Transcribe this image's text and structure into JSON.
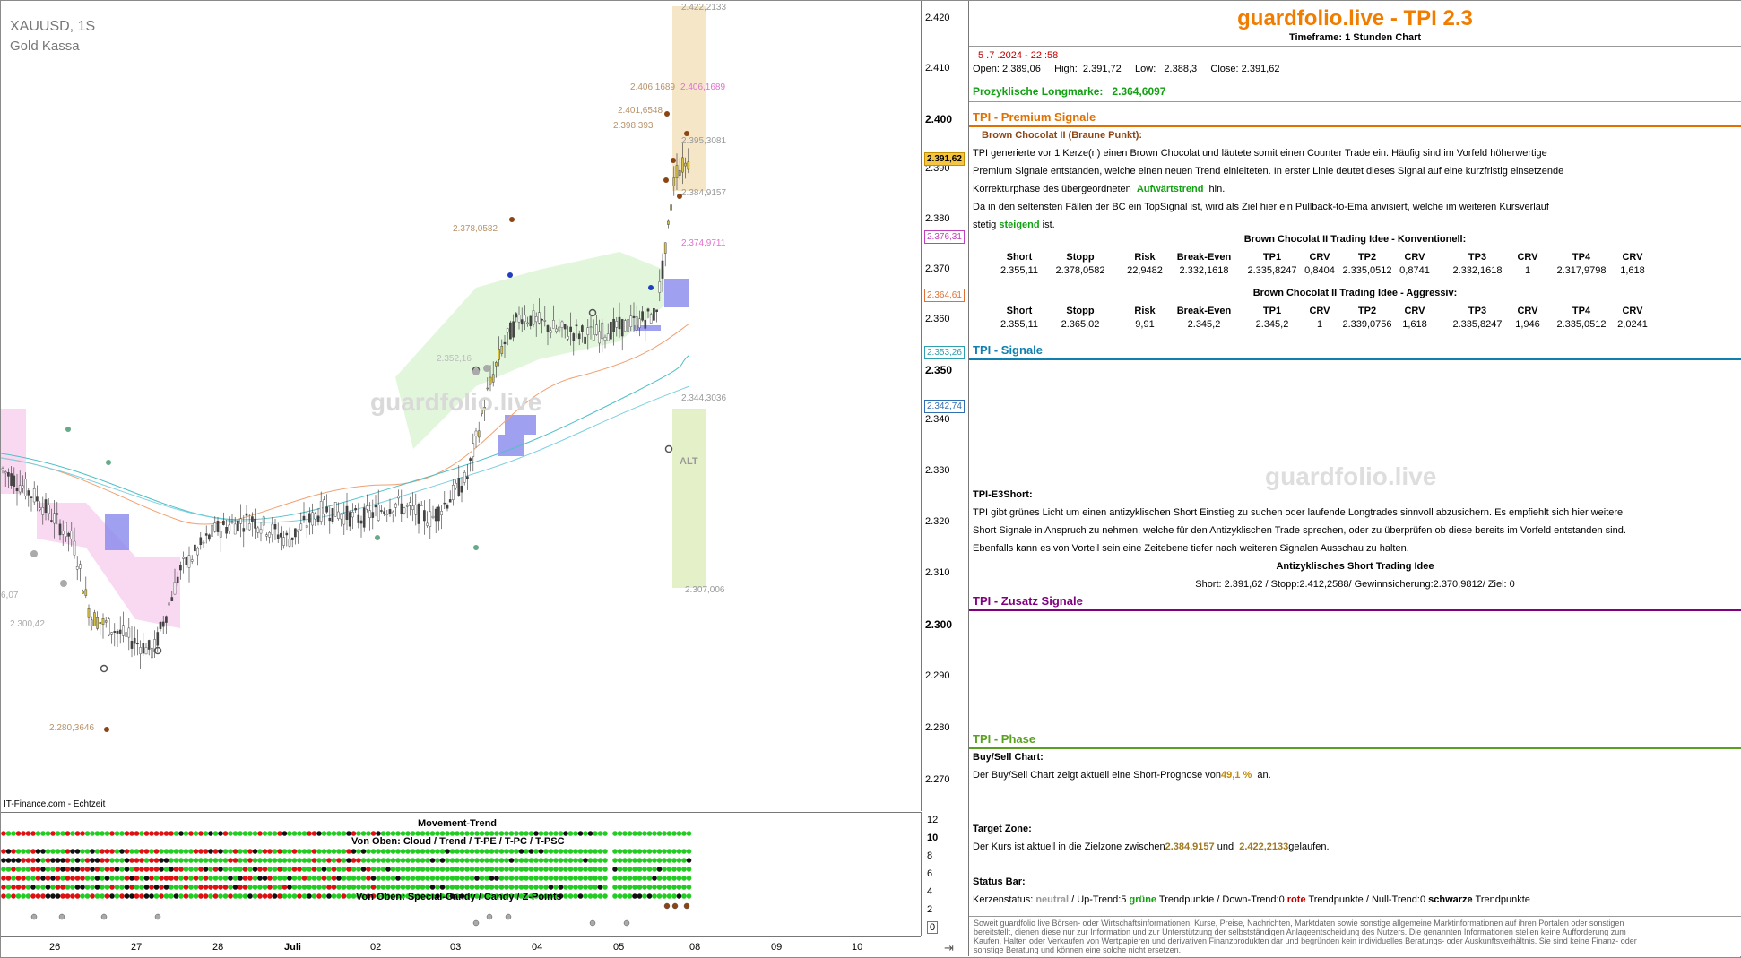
{
  "chart": {
    "symbol": "XAUUSD, 1S",
    "name": "Gold Kassa",
    "source": "IT-Finance.com - Echtzeit",
    "watermark": "guardfolio.live",
    "alt_label": "ALT",
    "price_labels_left": {
      "p1": "6,07",
      "p2": "2.300,42",
      "p3": "2.280,3646",
      "p4": "2.352,16",
      "p5": "2.378,0582",
      "p6": "2.398,393",
      "p7": "2.401,6548",
      "p8": "2.406,1689",
      "p9": "2.406,1689"
    },
    "price_labels_right": {
      "r1": "2.422,2133",
      "r2": "2.395,3081",
      "r3": "2.384,9157",
      "r4": "2.374,9711",
      "r5": "2.344,3036",
      "r6": "2.307,006"
    }
  },
  "yaxis": {
    "ticks": [
      "2.420",
      "2.410",
      "2.400",
      "2.390",
      "2.380",
      "2.370",
      "2.360",
      "2.350",
      "2.340",
      "2.330",
      "2.320",
      "2.310",
      "2.300",
      "2.290",
      "2.280",
      "2.270"
    ],
    "markers": {
      "current": "2.391,62",
      "m1": "2.376,31",
      "m2": "2.364,61",
      "m3": "2.353,26",
      "m4": "2.342,74"
    }
  },
  "indicator": {
    "movement_trend": "Movement-Trend",
    "von_oben_1": "Von Oben: Cloud / Trend / T-PE / T-PC / T-PSC",
    "von_oben_2": "Von Oben: Special-Candy / Candy / Z-Points",
    "axis": [
      "12",
      "10",
      "8",
      "6",
      "4",
      "2",
      "0"
    ]
  },
  "xaxis": {
    "ticks": [
      "26",
      "27",
      "28",
      "Juli",
      "02",
      "03",
      "04",
      "05",
      "08",
      "09",
      "10"
    ]
  },
  "panel": {
    "brand": "guardfolio.live - TPI 2.3",
    "timeframe": "Timeframe: 1 Stunden Chart",
    "date": "5 .7 .2024  - 22 :58",
    "open": "Open: 2.389,06",
    "high": "High:  2.391,72",
    "low": "Low:   2.388,3",
    "close": "Close: 2.391,62",
    "prozy_label": "Prozyklische Longmarke:",
    "prozy_value": "2.364,6097",
    "premium_title": "TPI - Premium Signale",
    "bc_title": "Brown Chocolat II (Braune Punkt):",
    "bc_text1": "TPI generierte vor 1  Kerze(n) einen Brown Chocolat und läutete somit einen Counter Trade ein. Häufig sind im Vorfeld höherwertige",
    "bc_text2": "Premium Signale entstanden, welche einen neuen Trend einleiteten. In erster Linie deutet dieses Signal auf eine kurzfristig einsetzende",
    "bc_text3a": "Korrekturphase des übergeordneten",
    "bc_text3b": "Aufwärtstrend",
    "bc_text3c": "hin.",
    "bc_text4": "Da in den seltensten Fällen der BC ein TopSignal ist, wird als Ziel hier ein Pullback-to-Ema anvisiert, welche im weiteren Kursverlauf",
    "bc_text5a": "stetig",
    "bc_text5b": "steigend",
    "bc_text5c": "ist.",
    "konv_title": "Brown Chocolat II Trading Idee - Konventionell:",
    "aggr_title": "Brown Chocolat II Trading Idee - Aggressiv:",
    "table_headers": [
      "Short",
      "Stopp",
      "Risk",
      "Break-Even",
      "TP1",
      "CRV",
      "TP2",
      "CRV",
      "TP3",
      "CRV",
      "TP4",
      "CRV"
    ],
    "konv_row": [
      "2.355,11",
      "2.378,0582",
      "22,9482",
      "2.332,1618",
      "2.335,8247",
      "0,8404",
      "2.335,0512",
      "0,8741",
      "2.332,1618",
      "1",
      "2.317,9798",
      "1,618"
    ],
    "aggr_row": [
      "2.355,11",
      "2.365,02",
      "9,91",
      "2.345,2",
      "2.345,2",
      "1",
      "2.339,0756",
      "1,618",
      "2.335,8247",
      "1,946",
      "2.335,0512",
      "2,0241"
    ],
    "signale_title": "TPI - Signale",
    "panel_watermark": "guardfolio.live",
    "e3_title": "TPI-E3Short:",
    "e3_text1": "TPI gibt grünes Licht um einen antizyklischen Short Einstieg zu suchen oder laufende Longtrades sinnvoll abzusichern. Es empfiehlt sich hier weitere",
    "e3_text2": "Short Signale in Anspruch zu nehmen, welche für den Antizyklischen Trade sprechen, oder zu überprüfen ob diese bereits im Vorfeld entstanden sind.",
    "e3_text3": "Ebenfalls kann es von Vorteil sein eine Zeitebene tiefer nach weiteren Signalen Ausschau zu halten.",
    "anti_title": "Antizyklisches Short Trading Idee",
    "anti_line": "Short:  2.391,62  / Stopp:2.412,2588/ Gewinnsicherung:2.370,9812/ Ziel:      0",
    "zusatz_title": "TPI - Zusatz Signale",
    "phase_title": "TPI - Phase",
    "buysell_title": "Buy/Sell Chart:",
    "buysell_a": "Der Buy/Sell Chart zeigt aktuell eine Short-Prognose von",
    "buysell_b": "49,1 %",
    "buysell_c": "an.",
    "target_title": "Target Zone:",
    "target_a": "Der Kurs ist aktuell in die Zielzone zwischen",
    "target_b": "2.384,9157",
    "target_c": "und",
    "target_d": "2.422,2133",
    "target_e": "gelaufen.",
    "status_title": "Status Bar:",
    "status_a": "Kerzenstatus:",
    "status_b": "neutral",
    "status_c": "/ Up-Trend:5",
    "status_d": "grüne",
    "status_e": "Trendpunkte  / Down-Trend:0",
    "status_f": "rote",
    "status_g": "Trendpunkte / Null-Trend:0",
    "status_h": "schwarze",
    "status_i": "Trendpunkte",
    "disclaimer": "Soweit guardfolio live Börsen- oder Wirtschaftsinformationen, Kurse, Preise, Nachrichten, Marktdaten sowie sonstige allgemeine Marktinformationen auf ihren Portalen oder sonstigen bereitstellt, dienen diese nur zur Information und zur Unterstützung der selbstständigen Anlageentscheidung des Nutzers. Die genannten Informationen stellen keine Aufforderung zum Kaufen, Halten oder Verkaufen von Wertpapieren und derivativen Finanzprodukten dar und begründen kein individuelles Beratungs- oder Auskunftsverhältnis. Sie sind keine Finanz- oder sonstige Beratung und können eine solche nicht ersetzen."
  },
  "colors": {
    "brand": "#f07d00",
    "premium": "#e07000",
    "signale": "#1080b0",
    "zusatz": "#800080",
    "phase": "#5aa020",
    "green": "#11a011",
    "red": "#c00000"
  }
}
